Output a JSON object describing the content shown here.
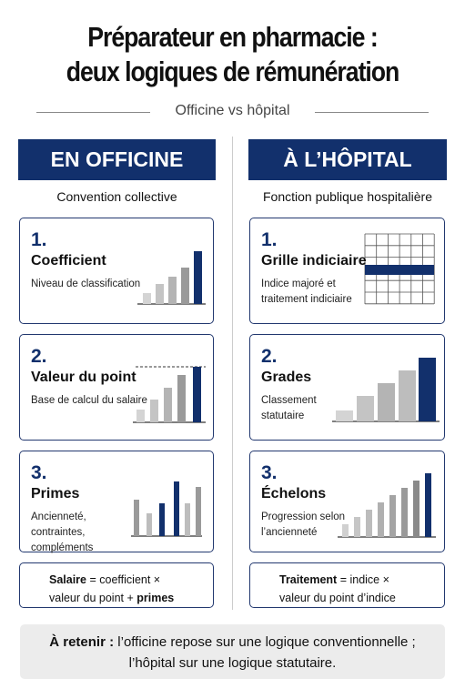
{
  "header": {
    "title": [
      "Préparateur en pharmacie :",
      "deux logiques de rémunération"
    ],
    "subtitle": "Officine vs hôpital"
  },
  "columns": [
    {
      "heading": "EN OFFICINE",
      "subheading": "Convention collective",
      "cards": [
        {
          "number": "1.",
          "title": "Coefficient",
          "description": [
            "Niveau de classification"
          ]
        },
        {
          "number": "2.",
          "title": "Valeur du point",
          "description": [
            "Base de calcul du salaire"
          ]
        },
        {
          "number": "3.",
          "title": "Primes",
          "description": [
            "Ancienneté,",
            "contraintes,",
            "compléments"
          ]
        }
      ],
      "summary": {
        "term": "Salaire",
        "line1": "= coefficient ×",
        "line2": "valeur du point +",
        "term2": "primes"
      }
    },
    {
      "heading": "À L’HÔPITAL",
      "subheading": "Fonction publique hospitalière",
      "cards": [
        {
          "number": "1.",
          "title": "Grille indiciaire",
          "description": [
            "Indice majoré et",
            "traitement indiciaire"
          ]
        },
        {
          "number": "2.",
          "title": "Grades",
          "description": [
            "Classement",
            "statutaire"
          ]
        },
        {
          "number": "3.",
          "title": "Échelons",
          "description": [
            "Progression selon",
            "l’ancienneté"
          ]
        }
      ],
      "summary": {
        "term": "Traitement",
        "line1": "= indice ×",
        "line2": "valeur du point d’indice"
      }
    }
  ],
  "footer": {
    "label": "À retenir :",
    "lines": [
      "l’officine repose sur une logique conventionnelle ;",
      "l’hôpital sur une logique statutaire."
    ]
  }
}
